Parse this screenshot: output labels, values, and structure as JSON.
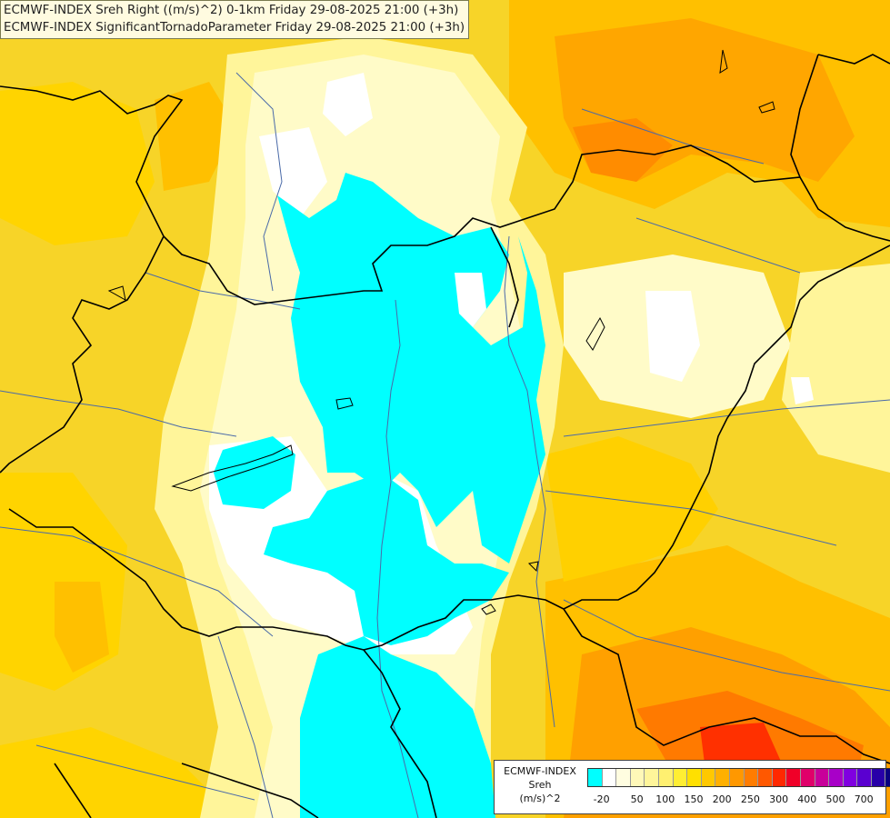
{
  "title": {
    "line1": "ECMWF-INDEX Sreh Right ((m/s)^2) 0-1km Friday 29-08-2025 21:00 (+3h)",
    "line2": "ECMWF-INDEX SignificantTornadoParameter Friday 29-08-2025 21:00 (+3h)"
  },
  "legend": {
    "line1": "ECMWF-INDEX",
    "line2": "Sreh",
    "line3": "(m/s)^2",
    "colors": [
      "#00ffff",
      "#ffffff",
      "#fffde0",
      "#fff8b8",
      "#fff59a",
      "#fff070",
      "#ffee33",
      "#ffe000",
      "#ffc800",
      "#ffb000",
      "#ff9800",
      "#ff7c00",
      "#ff5800",
      "#ff2800",
      "#f00028",
      "#e0006a",
      "#c8009a",
      "#a800c8",
      "#8000e0",
      "#5a00d0",
      "#2800a8",
      "#0a0080"
    ],
    "ticks": [
      {
        "label": "-20",
        "index": 0.5
      },
      {
        "label": "50",
        "index": 3
      },
      {
        "label": "100",
        "index": 5
      },
      {
        "label": "150",
        "index": 7
      },
      {
        "label": "200",
        "index": 9
      },
      {
        "label": "250",
        "index": 11
      },
      {
        "label": "300",
        "index": 13
      },
      {
        "label": "400",
        "index": 15
      },
      {
        "label": "500",
        "index": 17
      },
      {
        "label": "700",
        "index": 19
      }
    ]
  },
  "map_colors": {
    "cyan": "#00ffff",
    "white": "#ffffff",
    "pale": "#fffbc8",
    "lightyellow": "#fff59a",
    "yellow": "#ffee33",
    "gold": "#ffd700",
    "orange": "#ffb000",
    "darkorange": "#ff9000",
    "red": "#ff2000",
    "border": "#000000",
    "river": "#4a6aa8"
  }
}
